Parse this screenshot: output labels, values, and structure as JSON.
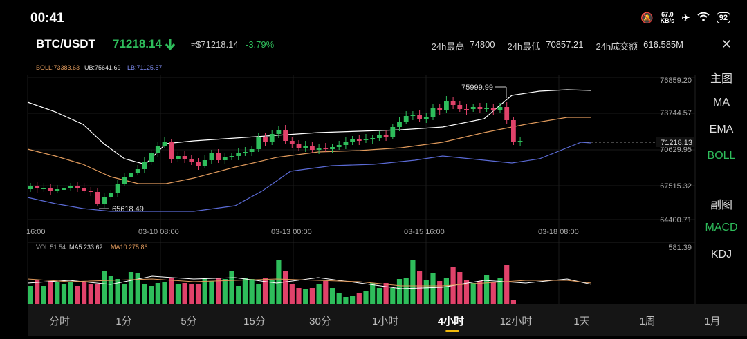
{
  "status": {
    "time": "00:41",
    "net_speed": "67.0",
    "net_unit": "KB/s",
    "battery": "92"
  },
  "header": {
    "pair": "BTC/USDT",
    "price": "71218.14",
    "approx": "≈$71218.14",
    "change": "-3.79%",
    "high_label": "24h最高",
    "high": "74800",
    "low_label": "24h最低",
    "low": "70857.21",
    "vol_label": "24h成交额",
    "vol": "616.585M"
  },
  "boll": {
    "boll": "BOLL:73383.63",
    "ub": "UB:75641.69",
    "lb": "LB:71125.57"
  },
  "price_axis": [
    "76859.20",
    "73744.57",
    "70629.95",
    "67515.32",
    "64400.71"
  ],
  "current_price_label": "71218.13",
  "max_label": "75999.99",
  "min_label": "65618.49",
  "time_axis": [
    "16:00",
    "03-10 08:00",
    "03-13 00:00",
    "03-15 16:00",
    "03-18 08:00"
  ],
  "vol_info": {
    "vol": "VOL:51.54",
    "ma5": "MA5:233.62",
    "ma10": "MA10:275.86"
  },
  "vol_max": "581.39",
  "side_menu": {
    "main_chart": "主图",
    "ma": "MA",
    "ema": "EMA",
    "boll": "BOLL",
    "sub_chart": "副图",
    "macd": "MACD",
    "kdj": "KDJ"
  },
  "timeframes": [
    "分时",
    "1分",
    "5分",
    "15分",
    "30分",
    "1小时",
    "4小时",
    "12小时",
    "1天",
    "1周",
    "1月"
  ],
  "active_timeframe": "4小时",
  "colors": {
    "up": "#2ebd5b",
    "down": "#e0426a",
    "boll_mid": "#e09a5c",
    "boll_ub": "#ffffff",
    "boll_lb": "#5b6bd6"
  }
}
